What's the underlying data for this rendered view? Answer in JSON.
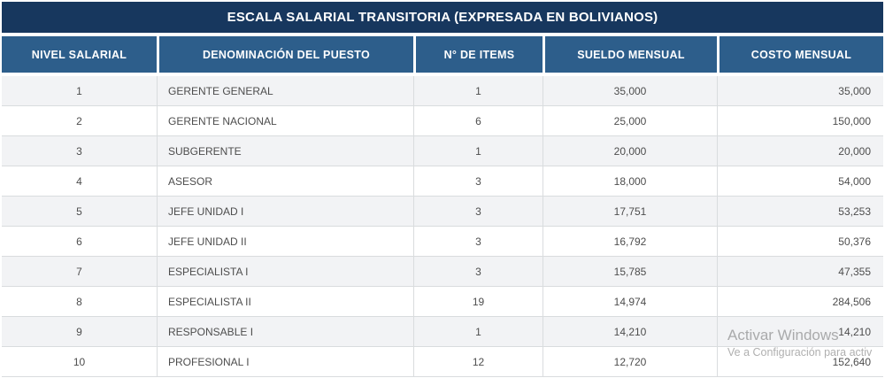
{
  "title": "ESCALA SALARIAL TRANSITORIA (EXPRESADA EN BOLIVIANOS)",
  "table": {
    "columns": [
      "NIVEL SALARIAL",
      "DENOMINACIÓN DEL PUESTO",
      "N° DE ITEMS",
      "SUELDO MENSUAL",
      "COSTO MENSUAL"
    ],
    "rows": [
      [
        "1",
        "GERENTE GENERAL",
        "1",
        "35,000",
        "35,000"
      ],
      [
        "2",
        "GERENTE NACIONAL",
        "6",
        "25,000",
        "150,000"
      ],
      [
        "3",
        "SUBGERENTE",
        "1",
        "20,000",
        "20,000"
      ],
      [
        "4",
        "ASESOR",
        "3",
        "18,000",
        "54,000"
      ],
      [
        "5",
        "JEFE UNIDAD I",
        "3",
        "17,751",
        "53,253"
      ],
      [
        "6",
        "JEFE UNIDAD II",
        "3",
        "16,792",
        "50,376"
      ],
      [
        "7",
        "ESPECIALISTA I",
        "3",
        "15,785",
        "47,355"
      ],
      [
        "8",
        "ESPECIALISTA II",
        "19",
        "14,974",
        "284,506"
      ],
      [
        "9",
        "RESPONSABLE I",
        "1",
        "14,210",
        "14,210"
      ],
      [
        "10",
        "PROFESIONAL I",
        "12",
        "12,720",
        "152,640"
      ]
    ]
  },
  "watermark": {
    "line1": "Activar Windows",
    "line2": "Ve a Configuración para activ"
  },
  "colors": {
    "title_bar_bg": "#17375E",
    "header_bg": "#2D5E8B",
    "header_text": "#FFFFFF",
    "row_alt_bg": "#F2F3F5",
    "border": "#D9DCDE",
    "body_text": "#4D4D4D",
    "watermark_text": "#9A9A9A"
  },
  "chart_data": {
    "type": "table",
    "title": "ESCALA SALARIAL TRANSITORIA (EXPRESADA EN BOLIVIANOS)",
    "columns": [
      "NIVEL SALARIAL",
      "DENOMINACIÓN DEL PUESTO",
      "N° DE ITEMS",
      "SUELDO MENSUAL",
      "COSTO MENSUAL"
    ],
    "rows": [
      [
        1,
        "GERENTE GENERAL",
        1,
        35000,
        35000
      ],
      [
        2,
        "GERENTE NACIONAL",
        6,
        25000,
        150000
      ],
      [
        3,
        "SUBGERENTE",
        1,
        20000,
        20000
      ],
      [
        4,
        "ASESOR",
        3,
        18000,
        54000
      ],
      [
        5,
        "JEFE UNIDAD I",
        3,
        17751,
        53253
      ],
      [
        6,
        "JEFE UNIDAD II",
        3,
        16792,
        50376
      ],
      [
        7,
        "ESPECIALISTA I",
        3,
        15785,
        47355
      ],
      [
        8,
        "ESPECIALISTA II",
        19,
        14974,
        284506
      ],
      [
        9,
        "RESPONSABLE I",
        1,
        14210,
        14210
      ],
      [
        10,
        "PROFESIONAL I",
        12,
        12720,
        152640
      ]
    ]
  }
}
